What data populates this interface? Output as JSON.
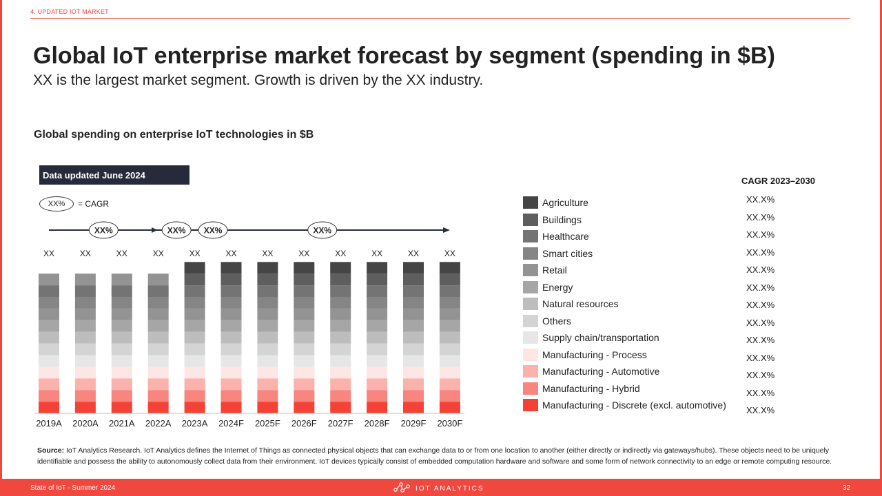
{
  "header": {
    "section": "4. UPDATED IOT MARKET",
    "title": "Global IoT enterprise market forecast by segment (spending in $B)",
    "subtitle": "XX is the largest market segment. Growth is driven by the XX industry."
  },
  "chart_note": {
    "updated": "Data updated June 2024",
    "cagr_key_oval": "XX%",
    "cagr_key_label": "= CAGR"
  },
  "cagr_header": "CAGR 2023–2030",
  "colors": {
    "accent": "#f0483e",
    "dark_box": "#262a3b"
  },
  "chart_data": {
    "type": "bar",
    "stacked": true,
    "title": "Global spending on enterprise IoT technologies in $B",
    "categories": [
      "2019A",
      "2020A",
      "2021A",
      "2022A",
      "2023A",
      "2024F",
      "2025F",
      "2026F",
      "2027F",
      "2028F",
      "2029F",
      "2030F"
    ],
    "total_labels": [
      "XX",
      "XX",
      "XX",
      "XX",
      "XX",
      "XX",
      "XX",
      "XX",
      "XX",
      "XX",
      "XX",
      "XX"
    ],
    "cagr_markers": [
      {
        "label": "XX%",
        "between": [
          "2020A",
          "2021A"
        ]
      },
      {
        "label": "XX%",
        "between": [
          "2022A",
          "2023A"
        ]
      },
      {
        "label": "XX%",
        "between": [
          "2023A",
          "2024F"
        ]
      },
      {
        "label": "XX%",
        "between": [
          "2026F",
          "2027F"
        ]
      }
    ],
    "series": [
      {
        "name": "Manufacturing - Discrete (excl. automotive)",
        "color": "#f44336",
        "cagr": "XX.X%"
      },
      {
        "name": "Manufacturing - Hybrid",
        "color": "#f8857e",
        "cagr": "XX.X%"
      },
      {
        "name": "Manufacturing - Automotive",
        "color": "#fbb1ac",
        "cagr": "XX.X%"
      },
      {
        "name": "Manufacturing - Process",
        "color": "#fde6e4",
        "cagr": "XX.X%"
      },
      {
        "name": "Supply chain/transportation",
        "color": "#e6e6e6",
        "cagr": "XX.X%"
      },
      {
        "name": "Others",
        "color": "#d4d4d4",
        "cagr": "XX.X%"
      },
      {
        "name": "Natural resources",
        "color": "#bdbdbd",
        "cagr": "XX.X%"
      },
      {
        "name": "Energy",
        "color": "#a6a6a6",
        "cagr": "XX.X%"
      },
      {
        "name": "Retail",
        "color": "#939393",
        "cagr": "XX.X%"
      },
      {
        "name": "Smart cities",
        "color": "#858585",
        "cagr": "XX.X%"
      },
      {
        "name": "Healthcare",
        "color": "#747474",
        "cagr": "XX.X%"
      },
      {
        "name": "Buildings",
        "color": "#5e5e5e",
        "cagr": "XX.X%"
      },
      {
        "name": "Agriculture",
        "color": "#454545",
        "cagr": "XX.X%"
      }
    ],
    "agriculture_present": [
      false,
      false,
      false,
      false,
      true,
      true,
      true,
      true,
      true,
      true,
      true,
      true
    ]
  },
  "source": {
    "label": "Source:",
    "text": "IoT Analytics Research. IoT Analytics defines the Internet of Things as connected physical objects that can exchange data to or from one location to another (either directly or indirectly via gateways/hubs). These objects need to be uniquely identifiable and possess the ability to autonomously collect data from their environment. IoT devices typically consist of embedded computation hardware and software and some form of network connectivity to an edge or remote computing resource."
  },
  "footer": {
    "left": "State of IoT - Summer 2024",
    "brand": "IOT ANALYTICS",
    "logo": "iot-analytics-logo-icon",
    "page": "32"
  }
}
